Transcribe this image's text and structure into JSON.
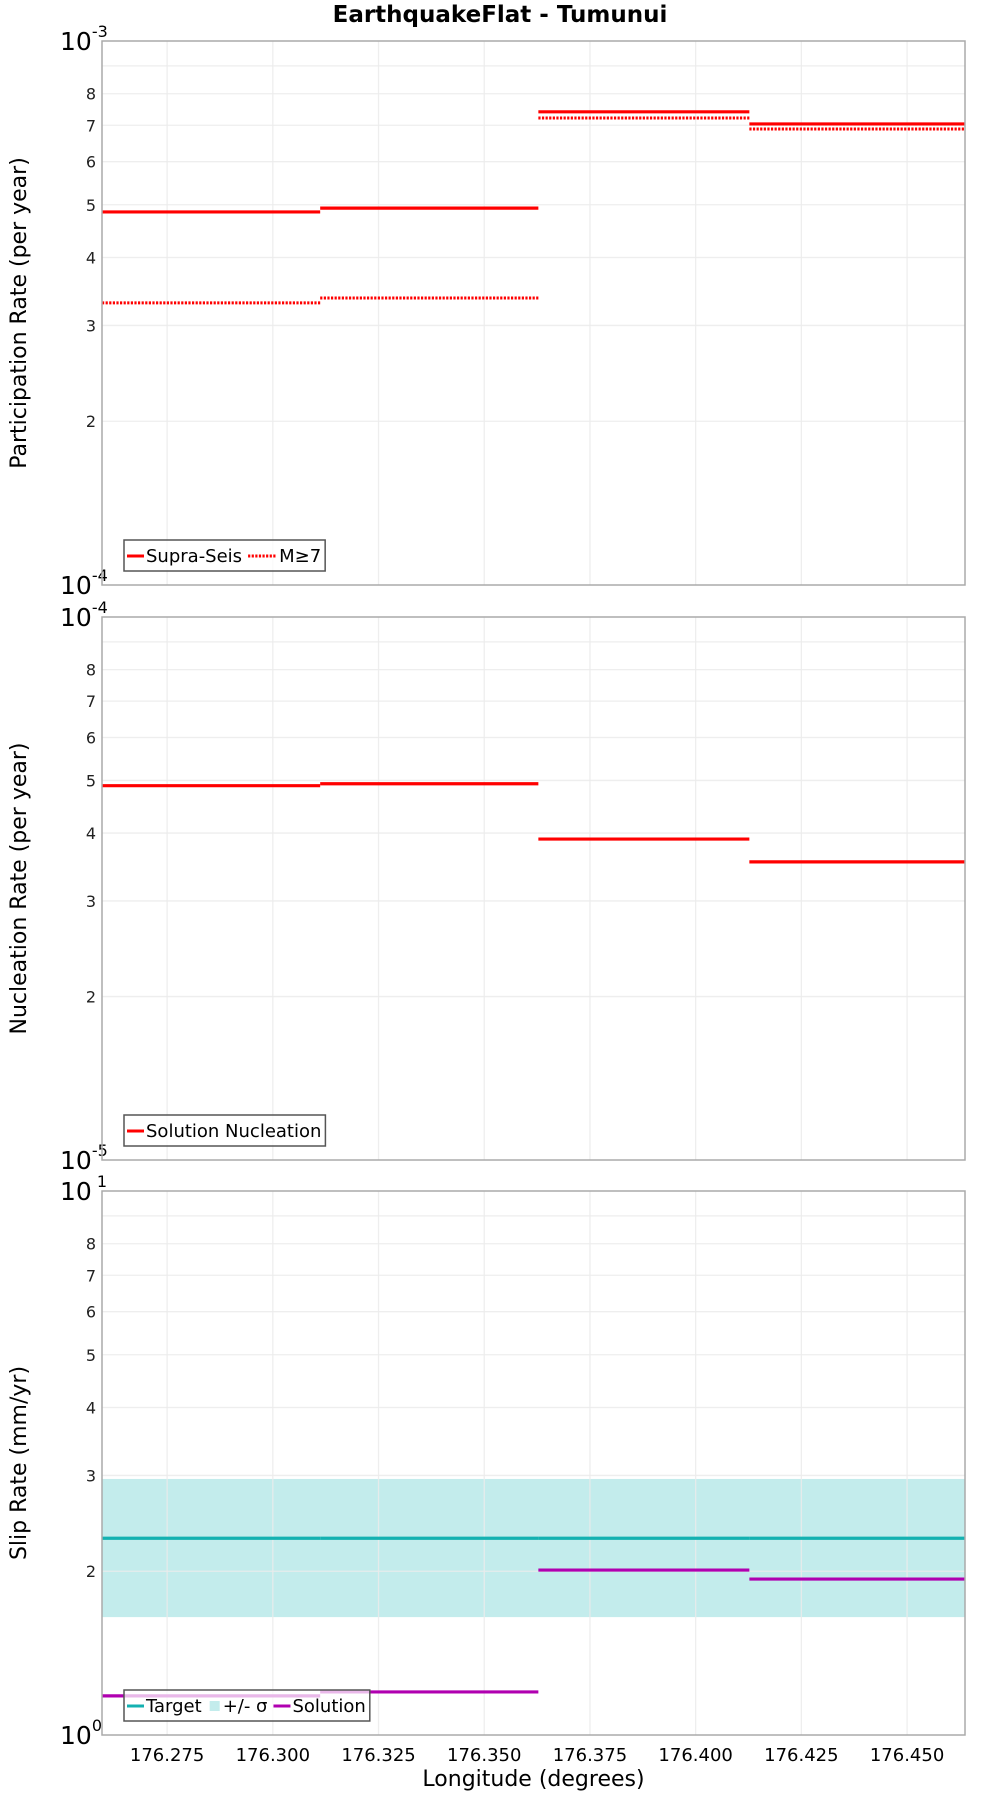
{
  "title": "EarthquakeFlat - Tumunui",
  "x_axis": {
    "label": "Longitude (degrees)",
    "range": [
      176.2596,
      176.4637
    ],
    "ticks": [
      176.275,
      176.3,
      176.325,
      176.35,
      176.375,
      176.4,
      176.425,
      176.45
    ],
    "tick_labels": [
      "176.275",
      "176.300",
      "176.325",
      "176.350",
      "176.375",
      "176.400",
      "176.425",
      "176.450"
    ]
  },
  "colors": {
    "red": "#ff0000",
    "target": "#14b1b1",
    "band": "#c3ecec",
    "solution": "#b000b0",
    "grid": "#ebebeb",
    "frame": "#aaaaaa",
    "legend_border": "#555555"
  },
  "chart_data": [
    {
      "type": "line",
      "subtype": "step",
      "title": "EarthquakeFlat - Tumunui",
      "xlabel": "Longitude (degrees)",
      "ylabel": "Participation Rate (per year)",
      "yscale": "log",
      "ylim": [
        0.0001,
        0.001
      ],
      "grid": true,
      "legend_position": "lower-left",
      "x_breaks": [
        176.2596,
        176.3112,
        176.3628,
        176.4127,
        176.4637
      ],
      "series": [
        {
          "name": "Supra-Seis",
          "style": "solid",
          "color": "#ff0000",
          "values": [
            0.000485,
            0.000493,
            0.000741,
            0.000704
          ]
        },
        {
          "name": "M≥7",
          "style": "dotted",
          "color": "#ff0000",
          "values": [
            0.00033,
            0.000337,
            0.000722,
            0.000689
          ]
        }
      ]
    },
    {
      "type": "line",
      "subtype": "step",
      "ylabel": "Nucleation Rate (per year)",
      "yscale": "log",
      "ylim": [
        1e-05,
        0.0001
      ],
      "grid": true,
      "legend_position": "lower-left",
      "x_breaks": [
        176.2596,
        176.3112,
        176.3628,
        176.4127,
        176.4637
      ],
      "series": [
        {
          "name": "Solution Nucleation",
          "style": "solid",
          "color": "#ff0000",
          "values": [
            4.89e-05,
            4.93e-05,
            3.9e-05,
            3.54e-05
          ]
        }
      ]
    },
    {
      "type": "line",
      "subtype": "step",
      "ylabel": "Slip Rate (mm/yr)",
      "xlabel": "Longitude (degrees)",
      "yscale": "log",
      "ylim": [
        1,
        10
      ],
      "grid": true,
      "legend_position": "lower-left",
      "x_breaks": [
        176.2596,
        176.3112,
        176.3628,
        176.4127,
        176.4637
      ],
      "series": [
        {
          "name": "Target",
          "style": "solid",
          "color": "#14b1b1",
          "values": [
            2.3,
            2.3,
            2.3,
            2.3
          ]
        },
        {
          "name": "+/- σ",
          "style": "band",
          "color": "#c3ecec",
          "lower": [
            1.647,
            1.647,
            1.647,
            1.647
          ],
          "upper": [
            2.956,
            2.956,
            2.956,
            2.956
          ]
        },
        {
          "name": "Solution",
          "style": "solid",
          "color": "#b000b0",
          "values": [
            1.18,
            1.2,
            2.01,
            1.935
          ]
        }
      ]
    }
  ],
  "panels": [
    {
      "id": "participation",
      "ylabel": "Participation Rate (per year)",
      "major_labels": [
        {
          "base": "10",
          "exp": "-3",
          "pos": "top"
        },
        {
          "base": "10",
          "exp": "-4",
          "pos": "bottom"
        }
      ],
      "minor_labels": [
        "2",
        "3",
        "4",
        "5",
        "6",
        "7",
        "8"
      ],
      "legend": [
        {
          "label": "Supra-Seis",
          "glyph": "solid",
          "color": "#ff0000"
        },
        {
          "label": "M≥7",
          "glyph": "dotted",
          "color": "#ff0000"
        }
      ]
    },
    {
      "id": "nucleation",
      "ylabel": "Nucleation Rate (per year)",
      "major_labels": [
        {
          "base": "10",
          "exp": "-4",
          "pos": "top"
        },
        {
          "base": "10",
          "exp": "-5",
          "pos": "bottom"
        }
      ],
      "minor_labels": [
        "2",
        "3",
        "4",
        "5",
        "6",
        "7",
        "8"
      ],
      "legend": [
        {
          "label": "Solution Nucleation",
          "glyph": "solid",
          "color": "#ff0000"
        }
      ]
    },
    {
      "id": "slip",
      "ylabel": "Slip Rate (mm/yr)",
      "major_labels": [
        {
          "base": "10",
          "exp": " 1",
          "pos": "top"
        },
        {
          "base": "10",
          "exp": "0",
          "pos": "bottom"
        }
      ],
      "minor_labels": [
        "2",
        "3",
        "4",
        "5",
        "6",
        "7",
        "8"
      ],
      "legend": [
        {
          "label": "Target",
          "glyph": "solid",
          "color": "#14b1b1"
        },
        {
          "label": "+/- σ",
          "glyph": "square",
          "color": "#c3ecec"
        },
        {
          "label": "Solution",
          "glyph": "solid",
          "color": "#b000b0"
        }
      ]
    }
  ]
}
